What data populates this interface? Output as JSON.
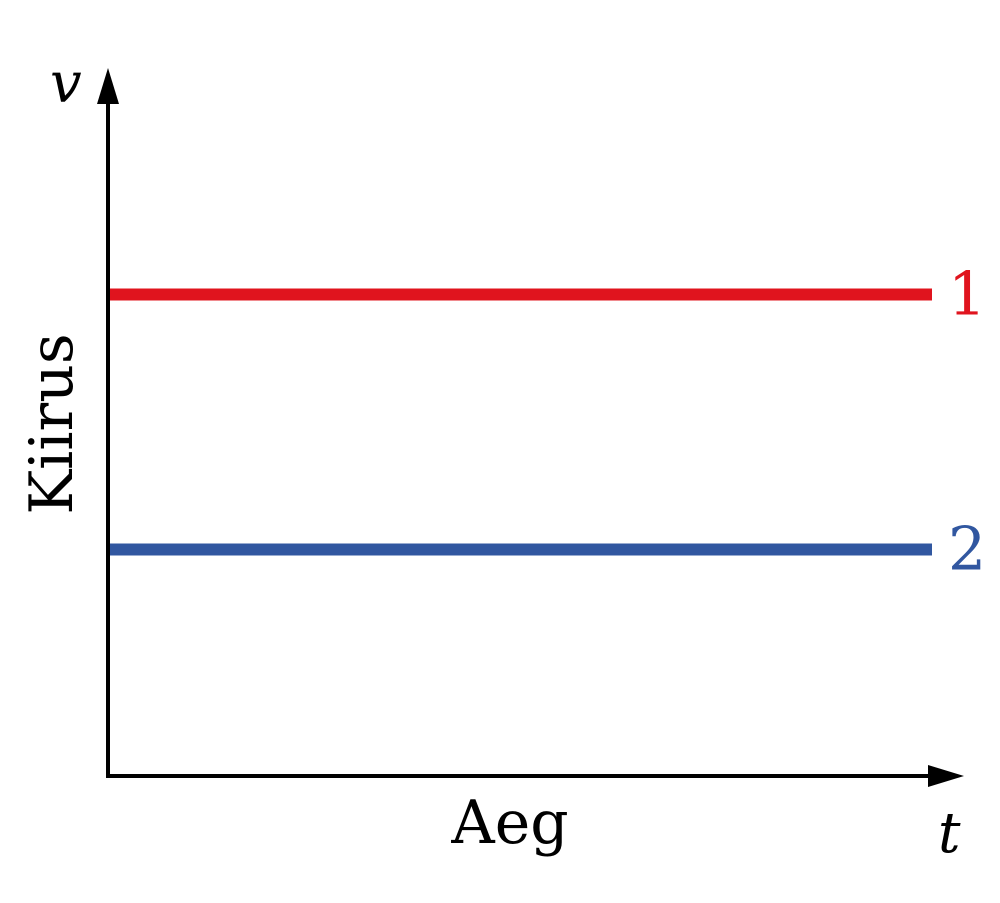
{
  "chart_data": {
    "type": "line",
    "title": "",
    "xlabel": "Aeg",
    "ylabel": "Kiirus",
    "x_symbol": "t",
    "y_symbol": "v",
    "xlim": [
      0,
      10
    ],
    "ylim": [
      0,
      10
    ],
    "grid": false,
    "legend": "none",
    "series": [
      {
        "name": "1",
        "color": "#e0141e",
        "x": [
          0,
          10
        ],
        "y": [
          6.8,
          6.8
        ]
      },
      {
        "name": "2",
        "color": "#3157a0",
        "x": [
          0,
          10
        ],
        "y": [
          3.2,
          3.2
        ]
      }
    ]
  }
}
